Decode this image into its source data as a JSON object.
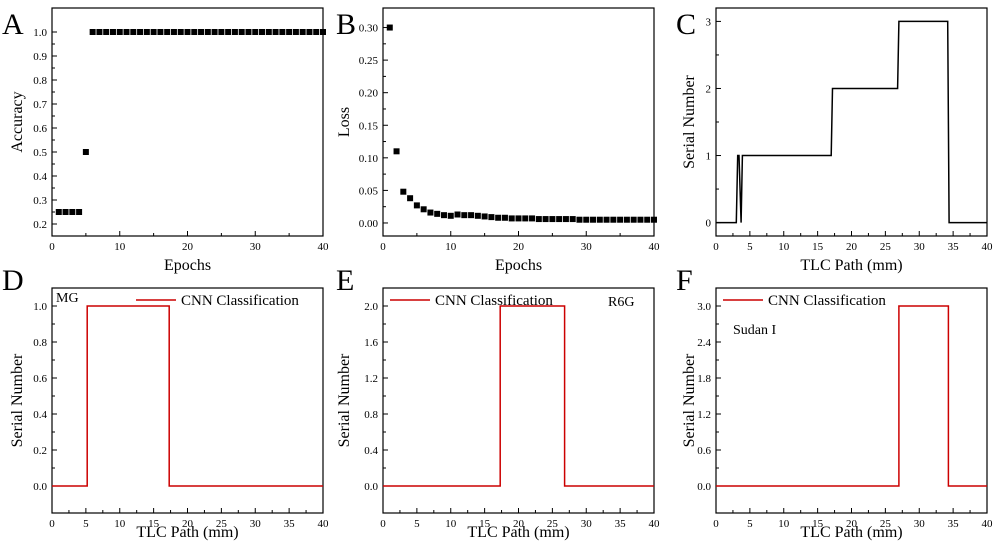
{
  "figure": {
    "panel_letters": [
      "A",
      "B",
      "C",
      "D",
      "E",
      "F"
    ]
  },
  "colors": {
    "axis": "#000000",
    "black_series": "#000000",
    "cnn_series": "#cc0000"
  },
  "chart_data": [
    {
      "type": "scatter",
      "panel": "A",
      "xlabel": "Epochs",
      "ylabel": "Accuracy",
      "xlim": [
        0,
        40
      ],
      "ylim": [
        0.15,
        1.1
      ],
      "xticks": [
        0,
        10,
        20,
        30,
        40
      ],
      "yticks": [
        0.2,
        0.3,
        0.4,
        0.5,
        0.6,
        0.7,
        0.8,
        0.9,
        1.0
      ],
      "ytick_labels": [
        "0.2",
        "0.3",
        "0.4",
        "0.5",
        "0.6",
        "0.7",
        "0.8",
        "0.9",
        "1.0"
      ],
      "x": [
        1,
        2,
        3,
        4,
        5,
        6,
        7,
        8,
        9,
        10,
        11,
        12,
        13,
        14,
        15,
        16,
        17,
        18,
        19,
        20,
        21,
        22,
        23,
        24,
        25,
        26,
        27,
        28,
        29,
        30,
        31,
        32,
        33,
        34,
        35,
        36,
        37,
        38,
        39,
        40
      ],
      "y": [
        0.25,
        0.25,
        0.25,
        0.25,
        0.5,
        1,
        1,
        1,
        1,
        1,
        1,
        1,
        1,
        1,
        1,
        1,
        1,
        1,
        1,
        1,
        1,
        1,
        1,
        1,
        1,
        1,
        1,
        1,
        1,
        1,
        1,
        1,
        1,
        1,
        1,
        1,
        1,
        1,
        1,
        1
      ],
      "marker": "square"
    },
    {
      "type": "scatter",
      "panel": "B",
      "xlabel": "Epochs",
      "ylabel": "Loss",
      "xlim": [
        0,
        40
      ],
      "ylim": [
        -0.02,
        0.33
      ],
      "xticks": [
        0,
        10,
        20,
        30,
        40
      ],
      "yticks": [
        0,
        0.05,
        0.1,
        0.15,
        0.2,
        0.25,
        0.3
      ],
      "ytick_labels": [
        "0.00",
        "0.05",
        "0.10",
        "0.15",
        "0.20",
        "0.25",
        "0.30"
      ],
      "x": [
        1,
        2,
        3,
        4,
        5,
        6,
        7,
        8,
        9,
        10,
        11,
        12,
        13,
        14,
        15,
        16,
        17,
        18,
        19,
        20,
        21,
        22,
        23,
        24,
        25,
        26,
        27,
        28,
        29,
        30,
        31,
        32,
        33,
        34,
        35,
        36,
        37,
        38,
        39,
        40
      ],
      "y": [
        0.3,
        0.11,
        0.048,
        0.038,
        0.027,
        0.021,
        0.016,
        0.014,
        0.012,
        0.011,
        0.013,
        0.012,
        0.012,
        0.011,
        0.01,
        0.009,
        0.008,
        0.008,
        0.007,
        0.007,
        0.007,
        0.007,
        0.006,
        0.006,
        0.006,
        0.006,
        0.006,
        0.006,
        0.005,
        0.005,
        0.005,
        0.005,
        0.005,
        0.005,
        0.005,
        0.005,
        0.005,
        0.005,
        0.005,
        0.005
      ],
      "marker": "square"
    },
    {
      "type": "line",
      "panel": "C",
      "xlabel": "TLC Path (mm)",
      "ylabel": "Serial Number",
      "xlim": [
        0,
        40
      ],
      "ylim": [
        -0.2,
        3.2
      ],
      "xticks": [
        0,
        5,
        10,
        15,
        20,
        25,
        30,
        35,
        40
      ],
      "yticks": [
        0,
        1,
        2,
        3
      ],
      "ytick_labels": [
        "0",
        "1",
        "2",
        "3"
      ],
      "x": [
        0,
        3,
        3.2,
        3.4,
        3.7,
        3.9,
        17,
        17.2,
        26.8,
        27,
        34.2,
        34.4,
        40
      ],
      "y": [
        0,
        0,
        1,
        1,
        0,
        1,
        1,
        2,
        2,
        3,
        3,
        0,
        0
      ]
    },
    {
      "type": "line",
      "panel": "D",
      "xlabel": "TLC Path (mm)",
      "ylabel": "Serial Number",
      "xlim": [
        0,
        40
      ],
      "ylim": [
        -0.15,
        1.1
      ],
      "xticks": [
        0,
        5,
        10,
        15,
        20,
        25,
        30,
        35,
        40
      ],
      "yticks": [
        0,
        0.2,
        0.4,
        0.6,
        0.8,
        1.0
      ],
      "ytick_labels": [
        "0.0",
        "0.2",
        "0.4",
        "0.6",
        "0.8",
        "1.0"
      ],
      "x": [
        0,
        5.2,
        5.2,
        17.3,
        17.3,
        40
      ],
      "y": [
        0,
        0,
        1,
        1,
        0,
        0
      ],
      "series_name": "CNN Classification",
      "annotation": "MG"
    },
    {
      "type": "line",
      "panel": "E",
      "xlabel": "TLC Path (mm)",
      "ylabel": "Serial Number",
      "xlim": [
        0,
        40
      ],
      "ylim": [
        -0.3,
        2.2
      ],
      "xticks": [
        0,
        5,
        10,
        15,
        20,
        25,
        30,
        35,
        40
      ],
      "yticks": [
        0,
        0.4,
        0.8,
        1.2,
        1.6,
        2.0
      ],
      "ytick_labels": [
        "0.0",
        "0.4",
        "0.8",
        "1.2",
        "1.6",
        "2.0"
      ],
      "x": [
        0,
        17.3,
        17.3,
        26.8,
        26.8,
        40
      ],
      "y": [
        0,
        0,
        2,
        2,
        0,
        0
      ],
      "series_name": "CNN Classification",
      "annotation": "R6G"
    },
    {
      "type": "line",
      "panel": "F",
      "xlabel": "TLC Path (mm)",
      "ylabel": "Serial Number",
      "xlim": [
        0,
        40
      ],
      "ylim": [
        -0.45,
        3.3
      ],
      "xticks": [
        0,
        5,
        10,
        15,
        20,
        25,
        30,
        35,
        40
      ],
      "yticks": [
        0,
        0.6,
        1.2,
        1.8,
        2.4,
        3.0
      ],
      "ytick_labels": [
        "0.0",
        "0.6",
        "1.2",
        "1.8",
        "2.4",
        "3.0"
      ],
      "x": [
        0,
        27,
        27,
        34.3,
        34.3,
        40
      ],
      "y": [
        0,
        0,
        3,
        3,
        0,
        0
      ],
      "series_name": "CNN Classification",
      "annotation": "Sudan I"
    }
  ]
}
